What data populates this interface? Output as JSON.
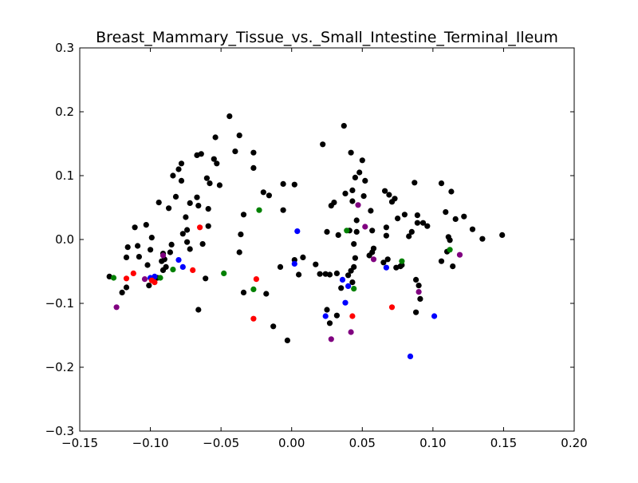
{
  "chart_data": {
    "type": "scatter",
    "title": "Breast_Mammary_Tissue_vs._Small_Intestine_Terminal_Ileum",
    "xlabel": "",
    "ylabel": "",
    "xlim": [
      -0.15,
      0.2
    ],
    "ylim": [
      -0.3,
      0.3
    ],
    "grid": false,
    "legend": "none",
    "xticks": [
      -0.15,
      -0.1,
      -0.05,
      0.0,
      0.05,
      0.1,
      0.15,
      0.2
    ],
    "xtick_labels": [
      "−0.15",
      "−0.10",
      "−0.05",
      "0.00",
      "0.05",
      "0.10",
      "0.15",
      "0.20"
    ],
    "yticks": [
      0.3,
      0.2,
      0.1,
      0.0,
      -0.1,
      -0.2,
      -0.3
    ],
    "ytick_labels": [
      "0.3",
      "0.2",
      "0.1",
      "0.0",
      "−0.1",
      "−0.2",
      "−0.3"
    ],
    "series": [
      {
        "color": "#000000",
        "points": [
          [
            -0.129,
            -0.058
          ],
          [
            -0.117,
            -0.028
          ],
          [
            -0.116,
            -0.012
          ],
          [
            -0.117,
            -0.075
          ],
          [
            -0.12,
            -0.083
          ],
          [
            -0.111,
            0.019
          ],
          [
            -0.109,
            -0.01
          ],
          [
            -0.108,
            -0.027
          ],
          [
            -0.103,
            0.023
          ],
          [
            -0.102,
            -0.04
          ],
          [
            -0.101,
            -0.072
          ],
          [
            -0.1,
            -0.016
          ],
          [
            -0.099,
            0.003
          ],
          [
            -0.095,
            -0.06
          ],
          [
            -0.094,
            0.058
          ],
          [
            -0.092,
            -0.034
          ],
          [
            -0.091,
            -0.048
          ],
          [
            -0.091,
            -0.022
          ],
          [
            -0.09,
            -0.031
          ],
          [
            -0.089,
            -0.043
          ],
          [
            -0.087,
            0.049
          ],
          [
            -0.086,
            -0.02
          ],
          [
            -0.085,
            -0.008
          ],
          [
            -0.084,
            0.1
          ],
          [
            -0.082,
            0.067
          ],
          [
            -0.08,
            0.11
          ],
          [
            -0.078,
            0.119
          ],
          [
            -0.078,
            0.092
          ],
          [
            -0.077,
            0.009
          ],
          [
            -0.075,
            0.035
          ],
          [
            -0.074,
            -0.004
          ],
          [
            -0.074,
            0.015
          ],
          [
            -0.072,
            0.057
          ],
          [
            -0.072,
            -0.015
          ],
          [
            -0.067,
            0.132
          ],
          [
            -0.067,
            0.066
          ],
          [
            -0.066,
            0.053
          ],
          [
            -0.066,
            -0.11
          ],
          [
            -0.064,
            0.134
          ],
          [
            -0.063,
            -0.007
          ],
          [
            -0.061,
            -0.061
          ],
          [
            -0.06,
            0.096
          ],
          [
            -0.059,
            0.021
          ],
          [
            -0.059,
            0.048
          ],
          [
            -0.058,
            0.088
          ],
          [
            -0.055,
            0.126
          ],
          [
            -0.054,
            0.16
          ],
          [
            -0.053,
            0.119
          ],
          [
            -0.051,
            0.085
          ],
          [
            -0.044,
            0.193
          ],
          [
            -0.04,
            0.138
          ],
          [
            -0.037,
            0.163
          ],
          [
            -0.037,
            -0.02
          ],
          [
            -0.036,
            0.008
          ],
          [
            -0.034,
            0.039
          ],
          [
            -0.034,
            -0.083
          ],
          [
            -0.027,
            0.136
          ],
          [
            -0.027,
            0.112
          ],
          [
            -0.02,
            0.074
          ],
          [
            -0.018,
            -0.085
          ],
          [
            -0.016,
            0.069
          ],
          [
            -0.013,
            -0.136
          ],
          [
            -0.008,
            -0.043
          ],
          [
            -0.006,
            0.046
          ],
          [
            -0.006,
            0.087
          ],
          [
            -0.003,
            -0.158
          ],
          [
            0.002,
            -0.032
          ],
          [
            0.002,
            0.086
          ],
          [
            0.005,
            -0.055
          ],
          [
            0.008,
            -0.028
          ],
          [
            0.017,
            -0.039
          ],
          [
            0.02,
            -0.054
          ],
          [
            0.022,
            0.149
          ],
          [
            0.024,
            -0.054
          ],
          [
            0.025,
            -0.11
          ],
          [
            0.025,
            0.012
          ],
          [
            0.027,
            -0.055
          ],
          [
            0.027,
            -0.131
          ],
          [
            0.028,
            0.053
          ],
          [
            0.03,
            0.058
          ],
          [
            0.032,
            -0.053
          ],
          [
            0.032,
            -0.119
          ],
          [
            0.033,
            0.007
          ],
          [
            0.035,
            -0.076
          ],
          [
            0.037,
            0.178
          ],
          [
            0.038,
            0.072
          ],
          [
            0.04,
            -0.056
          ],
          [
            0.041,
            0.014
          ],
          [
            0.042,
            -0.049
          ],
          [
            0.042,
            0.136
          ],
          [
            0.043,
            0.06
          ],
          [
            0.043,
            -0.067
          ],
          [
            0.043,
            0.077
          ],
          [
            0.044,
            -0.043
          ],
          [
            0.044,
            -0.007
          ],
          [
            0.045,
            0.097
          ],
          [
            0.045,
            -0.029
          ],
          [
            0.046,
            0.03
          ],
          [
            0.046,
            0.012
          ],
          [
            0.048,
            0.105
          ],
          [
            0.05,
            0.124
          ],
          [
            0.051,
            0.068
          ],
          [
            0.052,
            0.092
          ],
          [
            0.055,
            -0.025
          ],
          [
            0.056,
            0.045
          ],
          [
            0.057,
            -0.02
          ],
          [
            0.057,
            0.014
          ],
          [
            0.058,
            -0.014
          ],
          [
            0.065,
            -0.036
          ],
          [
            0.066,
            0.076
          ],
          [
            0.067,
            0.006
          ],
          [
            0.067,
            0.019
          ],
          [
            0.068,
            -0.031
          ],
          [
            0.069,
            0.07
          ],
          [
            0.071,
            0.059
          ],
          [
            0.073,
            0.064
          ],
          [
            0.074,
            -0.044
          ],
          [
            0.075,
            0.033
          ],
          [
            0.077,
            -0.042
          ],
          [
            0.078,
            -0.04
          ],
          [
            0.08,
            0.039
          ],
          [
            0.083,
            0.005
          ],
          [
            0.085,
            0.012
          ],
          [
            0.087,
            0.089
          ],
          [
            0.088,
            -0.063
          ],
          [
            0.088,
            -0.114
          ],
          [
            0.089,
            0.038
          ],
          [
            0.089,
            0.026
          ],
          [
            0.09,
            -0.072
          ],
          [
            0.091,
            -0.093
          ],
          [
            0.093,
            0.026
          ],
          [
            0.096,
            0.021
          ],
          [
            0.106,
            0.088
          ],
          [
            0.106,
            -0.034
          ],
          [
            0.109,
            0.043
          ],
          [
            0.11,
            -0.019
          ],
          [
            0.111,
            0.004
          ],
          [
            0.112,
            -0.001
          ],
          [
            0.113,
            0.075
          ],
          [
            0.114,
            -0.042
          ],
          [
            0.116,
            0.032
          ],
          [
            0.122,
            0.036
          ],
          [
            0.128,
            0.016
          ],
          [
            0.135,
            0.001
          ],
          [
            0.149,
            0.007
          ]
        ]
      },
      {
        "color": "#0000ff",
        "points": [
          [
            -0.1,
            -0.06
          ],
          [
            -0.097,
            -0.058
          ],
          [
            -0.08,
            -0.032
          ],
          [
            -0.077,
            -0.043
          ],
          [
            0.002,
            -0.038
          ],
          [
            0.004,
            0.013
          ],
          [
            0.024,
            -0.12
          ],
          [
            0.036,
            -0.063
          ],
          [
            0.038,
            -0.099
          ],
          [
            0.04,
            -0.073
          ],
          [
            0.067,
            -0.044
          ],
          [
            0.084,
            -0.183
          ],
          [
            0.101,
            -0.12
          ]
        ]
      },
      {
        "color": "#ff0000",
        "points": [
          [
            -0.117,
            -0.061
          ],
          [
            -0.112,
            -0.053
          ],
          [
            -0.099,
            -0.064
          ],
          [
            -0.097,
            -0.067
          ],
          [
            -0.07,
            -0.048
          ],
          [
            -0.065,
            0.019
          ],
          [
            -0.027,
            -0.124
          ],
          [
            -0.025,
            -0.062
          ],
          [
            0.043,
            -0.12
          ],
          [
            0.071,
            -0.106
          ]
        ]
      },
      {
        "color": "#008000",
        "points": [
          [
            -0.126,
            -0.06
          ],
          [
            -0.093,
            -0.06
          ],
          [
            -0.084,
            -0.047
          ],
          [
            -0.048,
            -0.053
          ],
          [
            -0.027,
            -0.078
          ],
          [
            -0.023,
            0.046
          ],
          [
            0.039,
            0.014
          ],
          [
            0.044,
            -0.077
          ],
          [
            0.078,
            -0.034
          ],
          [
            0.112,
            -0.016
          ]
        ]
      },
      {
        "color": "#800080",
        "points": [
          [
            -0.124,
            -0.106
          ],
          [
            -0.104,
            -0.062
          ],
          [
            -0.091,
            -0.025
          ],
          [
            0.028,
            -0.156
          ],
          [
            0.042,
            -0.145
          ],
          [
            0.047,
            0.054
          ],
          [
            0.052,
            0.02
          ],
          [
            0.058,
            -0.031
          ],
          [
            0.09,
            -0.082
          ],
          [
            0.119,
            -0.024
          ]
        ]
      }
    ]
  }
}
